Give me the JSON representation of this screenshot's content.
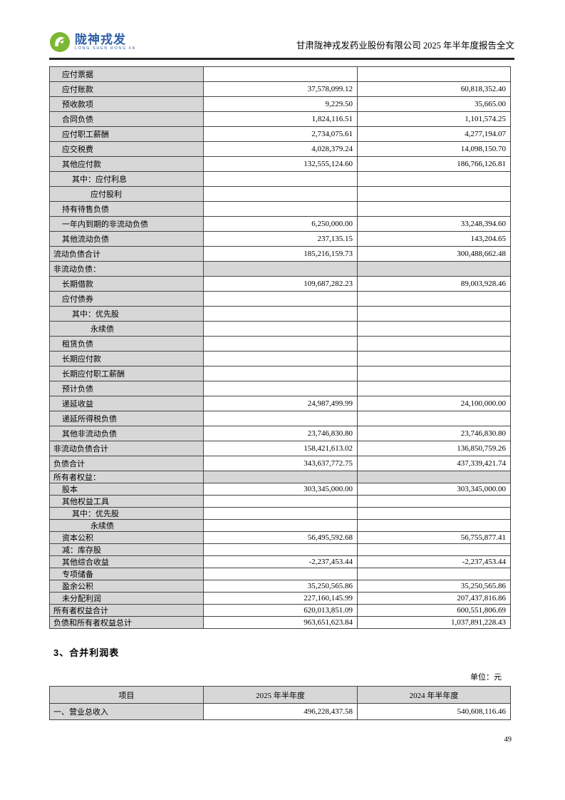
{
  "header": {
    "logo_cn": "陇神戎发",
    "logo_en": "LONG SHEN RONG FA",
    "title": "甘肃陇神戎发药业股份有限公司 2025 年半年度报告全文"
  },
  "colors": {
    "row_shade": "#d7d7d7",
    "table_border": "#454545",
    "logo_green": "#7cb832",
    "logo_blue": "#2d5fa6"
  },
  "balance_sheet": {
    "rows": [
      {
        "label": "应付票据",
        "v2025": "",
        "v2024": "",
        "indent": 1
      },
      {
        "label": "应付账款",
        "v2025": "37,578,099.12",
        "v2024": "60,818,352.40",
        "indent": 1
      },
      {
        "label": "预收款项",
        "v2025": "9,229.50",
        "v2024": "35,665.00",
        "indent": 1
      },
      {
        "label": "合同负债",
        "v2025": "1,824,116.51",
        "v2024": "1,101,574.25",
        "indent": 1
      },
      {
        "label": "应付职工薪酬",
        "v2025": "2,734,075.61",
        "v2024": "4,277,194.07",
        "indent": 1
      },
      {
        "label": "应交税费",
        "v2025": "4,028,379.24",
        "v2024": "14,098,150.70",
        "indent": 1
      },
      {
        "label": "其他应付款",
        "v2025": "132,555,124.60",
        "v2024": "186,766,126.81",
        "indent": 1
      },
      {
        "label": "其中：应付利息",
        "v2025": "",
        "v2024": "",
        "indent": 2
      },
      {
        "label": "应付股利",
        "v2025": "",
        "v2024": "",
        "indent": 3
      },
      {
        "label": "持有待售负债",
        "v2025": "",
        "v2024": "",
        "indent": 1
      },
      {
        "label": "一年内到期的非流动负债",
        "v2025": "6,250,000.00",
        "v2024": "33,248,394.60",
        "indent": 1
      },
      {
        "label": "其他流动负债",
        "v2025": "237,135.15",
        "v2024": "143,204.65",
        "indent": 1
      },
      {
        "label": "流动负债合计",
        "v2025": "185,216,159.73",
        "v2024": "300,488,662.48",
        "indent": 0
      },
      {
        "label": "非流动负债：",
        "v2025": "",
        "v2024": "",
        "indent": 0,
        "shaded": true
      },
      {
        "label": "长期借款",
        "v2025": "109,687,282.23",
        "v2024": "89,003,928.46",
        "indent": 1
      },
      {
        "label": "应付债券",
        "v2025": "",
        "v2024": "",
        "indent": 1
      },
      {
        "label": "其中：优先股",
        "v2025": "",
        "v2024": "",
        "indent": 2
      },
      {
        "label": "永续债",
        "v2025": "",
        "v2024": "",
        "indent": 3
      },
      {
        "label": "租赁负债",
        "v2025": "",
        "v2024": "",
        "indent": 1
      },
      {
        "label": "长期应付款",
        "v2025": "",
        "v2024": "",
        "indent": 1
      },
      {
        "label": "长期应付职工薪酬",
        "v2025": "",
        "v2024": "",
        "indent": 1
      },
      {
        "label": "预计负债",
        "v2025": "",
        "v2024": "",
        "indent": 1
      },
      {
        "label": "递延收益",
        "v2025": "24,987,499.99",
        "v2024": "24,100,000.00",
        "indent": 1
      },
      {
        "label": "递延所得税负债",
        "v2025": "",
        "v2024": "",
        "indent": 1
      },
      {
        "label": "其他非流动负债",
        "v2025": "23,746,830.80",
        "v2024": "23,746,830.80",
        "indent": 1
      },
      {
        "label": "非流动负债合计",
        "v2025": "158,421,613.02",
        "v2024": "136,850,759.26",
        "indent": 0
      },
      {
        "label": "负债合计",
        "v2025": "343,637,772.75",
        "v2024": "437,339,421.74",
        "indent": 0
      },
      {
        "label": "所有者权益：",
        "v2025": "",
        "v2024": "",
        "indent": 0,
        "shaded": true,
        "compact": true
      },
      {
        "label": "股本",
        "v2025": "303,345,000.00",
        "v2024": "303,345,000.00",
        "indent": 1,
        "compact": true
      },
      {
        "label": "其他权益工具",
        "v2025": "",
        "v2024": "",
        "indent": 1,
        "compact": true
      },
      {
        "label": "其中：优先股",
        "v2025": "",
        "v2024": "",
        "indent": 2,
        "compact": true
      },
      {
        "label": "永续债",
        "v2025": "",
        "v2024": "",
        "indent": 3,
        "compact": true
      },
      {
        "label": "资本公积",
        "v2025": "56,495,592.68",
        "v2024": "56,755,877.41",
        "indent": 1,
        "compact": true
      },
      {
        "label": "减：库存股",
        "v2025": "",
        "v2024": "",
        "indent": 1,
        "compact": true
      },
      {
        "label": "其他综合收益",
        "v2025": "-2,237,453.44",
        "v2024": "-2,237,453.44",
        "indent": 1,
        "compact": true
      },
      {
        "label": "专项储备",
        "v2025": "",
        "v2024": "",
        "indent": 1,
        "compact": true
      },
      {
        "label": "盈余公积",
        "v2025": "35,250,565.86",
        "v2024": "35,250,565.86",
        "indent": 1,
        "compact": true
      },
      {
        "label": "未分配利润",
        "v2025": "227,160,145.99",
        "v2024": "207,437,816.86",
        "indent": 1,
        "compact": true
      },
      {
        "label": "所有者权益合计",
        "v2025": "620,013,851.09",
        "v2024": "600,551,806.69",
        "indent": 0,
        "compact": true
      },
      {
        "label": "负债和所有者权益总计",
        "v2025": "963,651,623.84",
        "v2024": "1,037,891,228.43",
        "indent": 0,
        "compact": true
      }
    ]
  },
  "income_section": {
    "heading": "3、合并利润表",
    "unit": "单位：元",
    "table": {
      "headers": [
        "项目",
        "2025 年半年度",
        "2024 年半年度"
      ],
      "rows": [
        {
          "label": "一、营业总收入",
          "v2025": "496,228,437.58",
          "v2024": "540,608,116.46",
          "indent": 0
        }
      ]
    }
  },
  "footer": {
    "page_number": "49"
  }
}
